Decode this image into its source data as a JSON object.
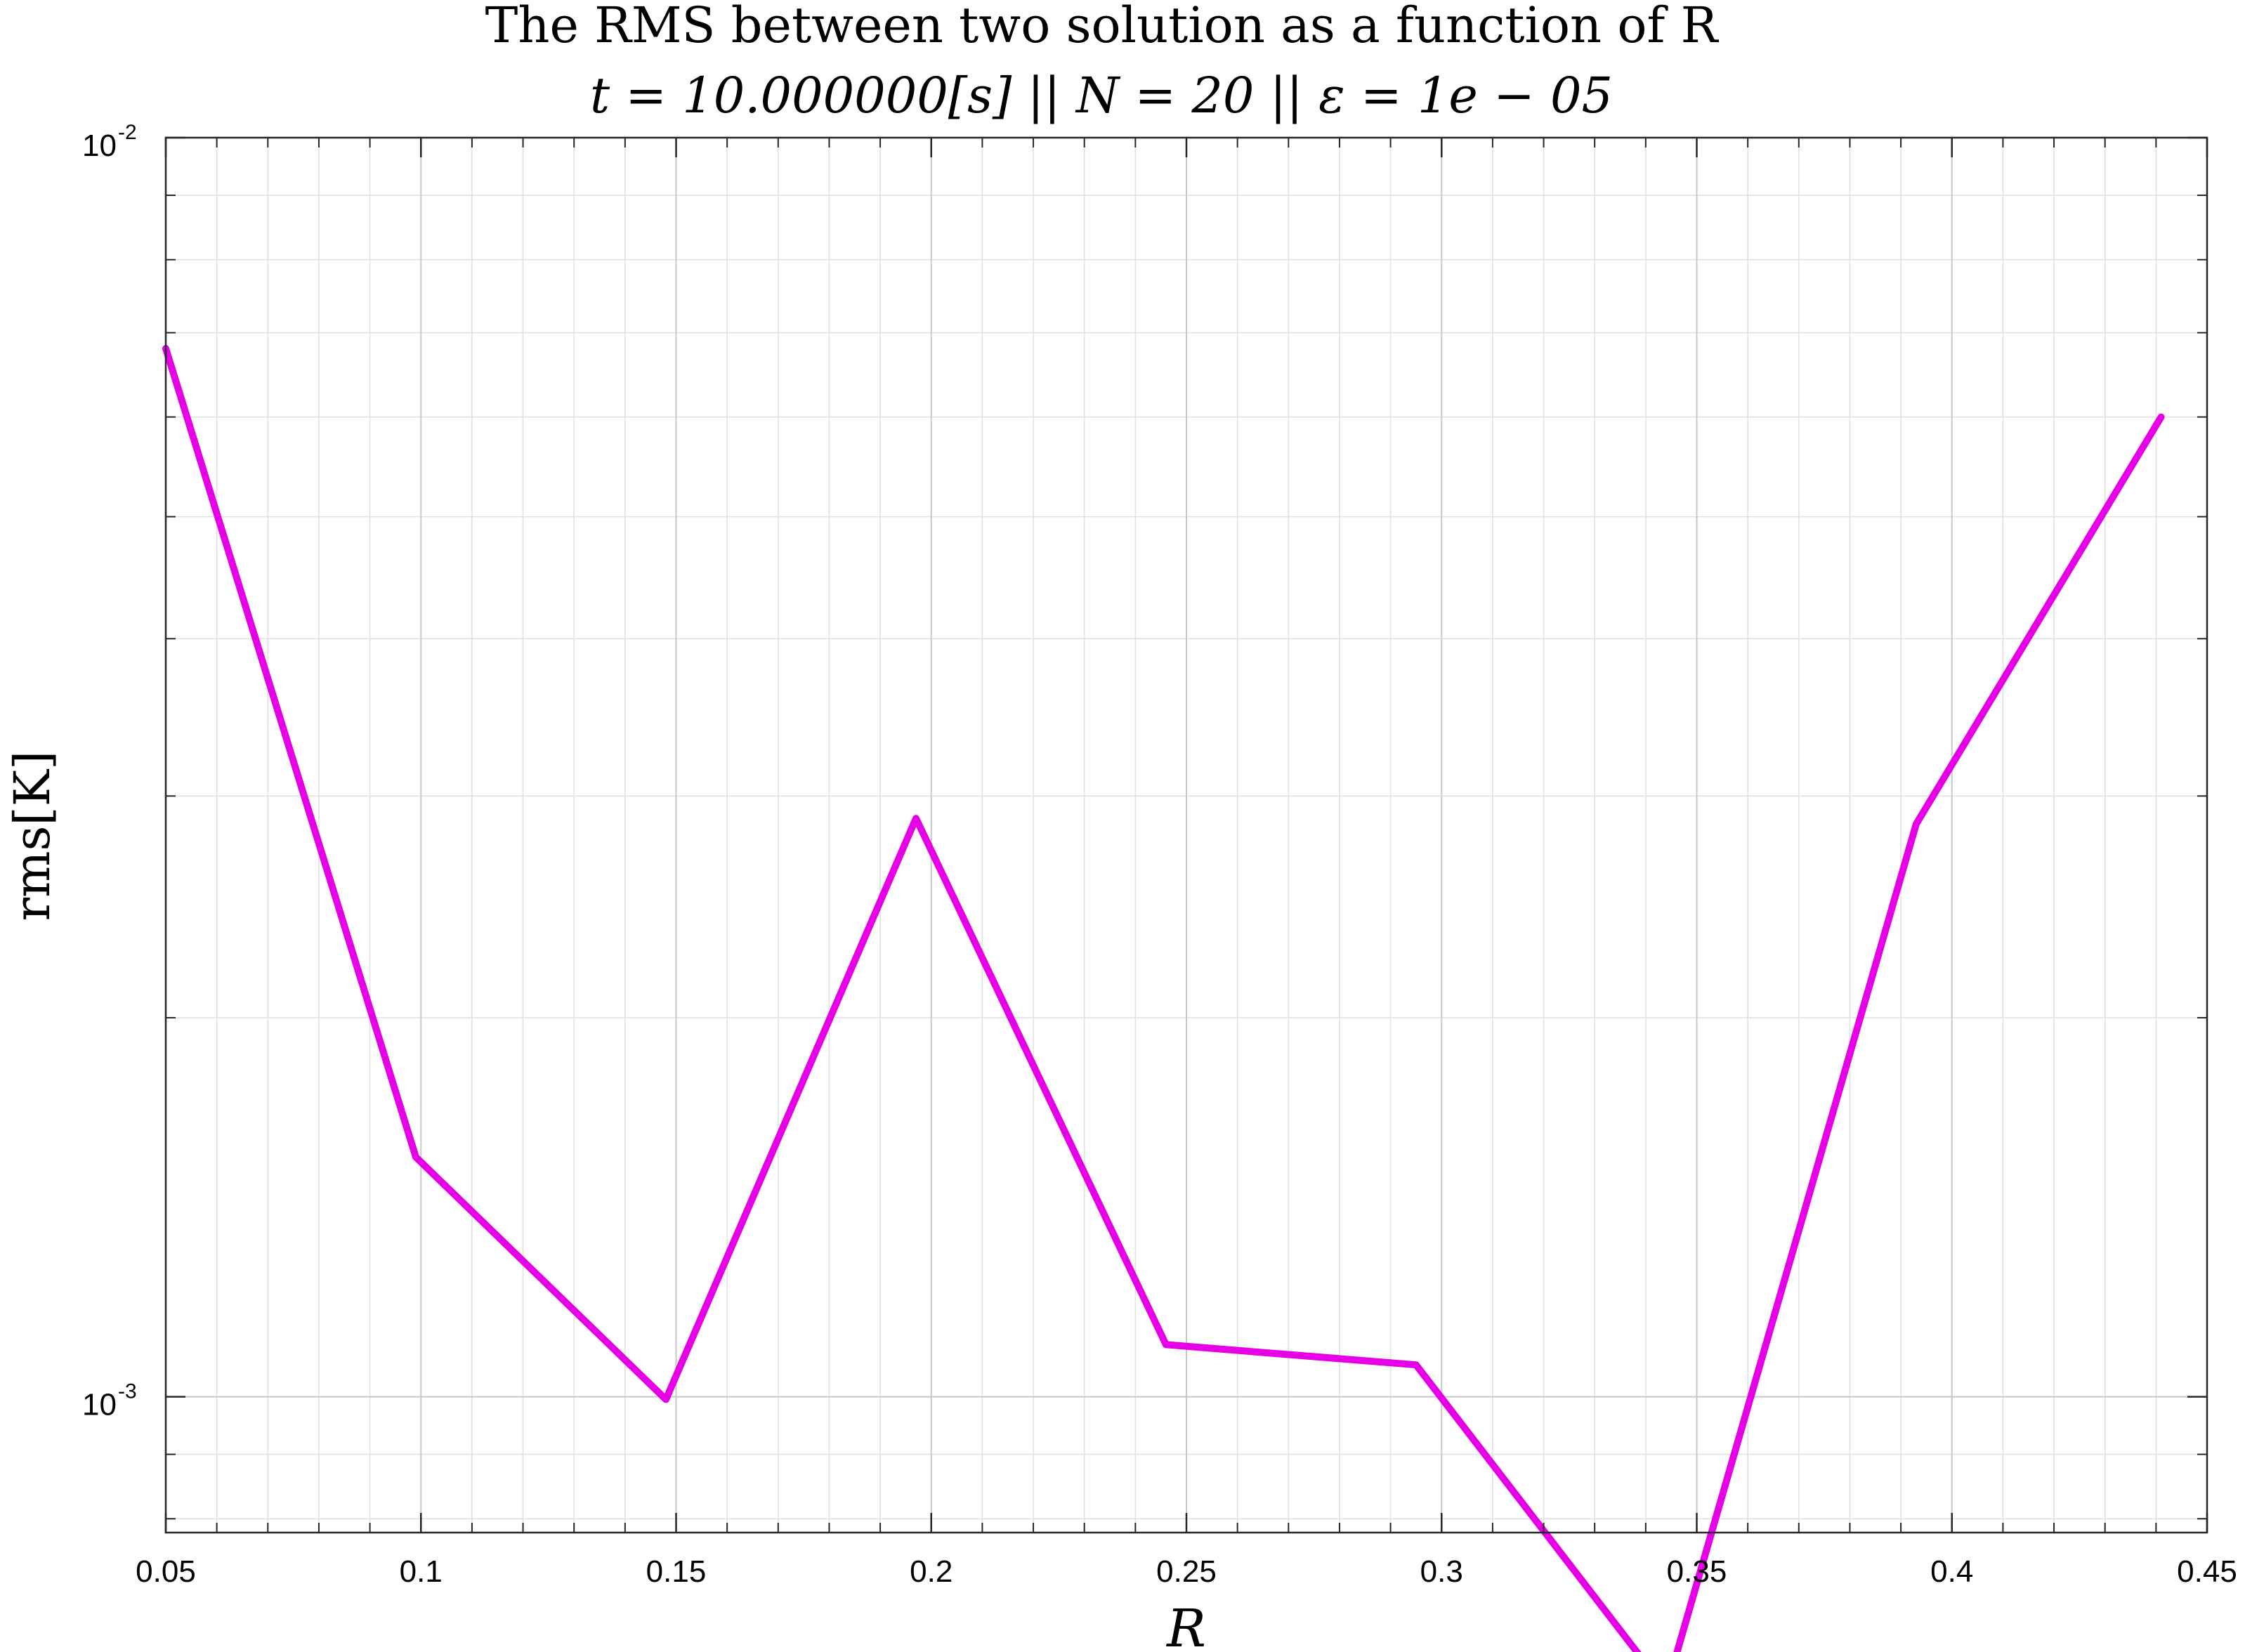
{
  "chart_data": {
    "type": "line",
    "title": "The RMS between two solution as a function of R",
    "subtitle": "t = 10.000000[s] || N = 20 || ε = 1e − 05",
    "xlabel": "R",
    "ylabel": "rms[K]",
    "xscale": "linear",
    "yscale": "log",
    "xlim": [
      0.05,
      0.45
    ],
    "ylim": [
      0.00078,
      0.01
    ],
    "xticks": [
      0.05,
      0.1,
      0.15,
      0.2,
      0.25,
      0.3,
      0.35,
      0.4,
      0.45
    ],
    "xtick_labels": [
      "0.05",
      "0.1",
      "0.15",
      "0.2",
      "0.25",
      "0.3",
      "0.35",
      "0.4",
      "0.45"
    ],
    "yticks": [
      {
        "value": 0.01,
        "base": "10",
        "exp": "-2"
      },
      {
        "value": 0.001,
        "base": "10",
        "exp": "-3"
      }
    ],
    "grid": true,
    "minor_grid": true,
    "series": [
      {
        "color": "#e600e6",
        "x": [
          0.05,
          0.099,
          0.148,
          0.197,
          0.246,
          0.295,
          0.344,
          0.393,
          0.441
        ],
        "y": [
          0.0068,
          0.00155,
          0.000995,
          0.00288,
          0.0011,
          0.00106,
          0.000585,
          0.00285,
          0.006
        ]
      }
    ]
  }
}
